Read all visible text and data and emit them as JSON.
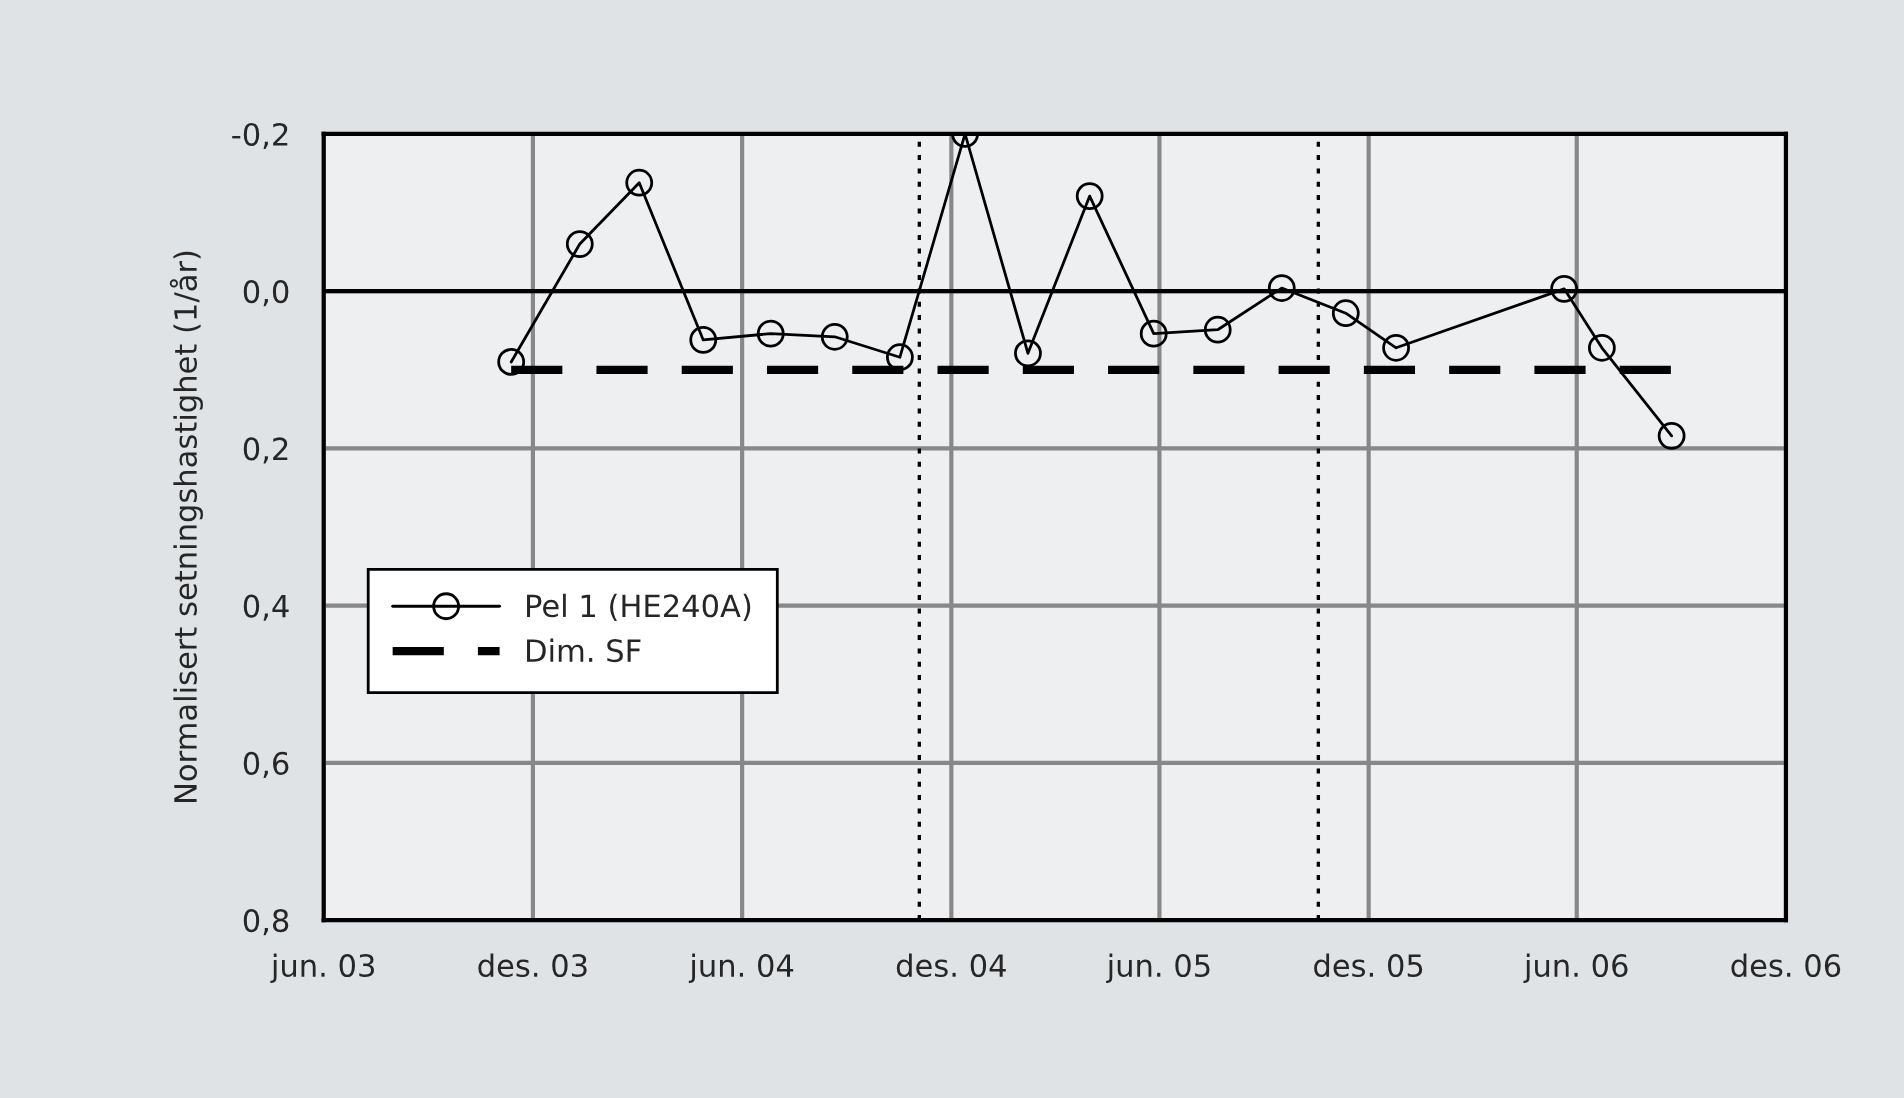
{
  "chart_data": {
    "type": "line",
    "ylabel": "Normalisert setningshastighet (1/år)",
    "xlim": [
      "2003-06-01",
      "2006-12-01"
    ],
    "xticks": [
      {
        "value": "2003-06-01",
        "label": "jun. 03"
      },
      {
        "value": "2003-12-01",
        "label": "des. 03"
      },
      {
        "value": "2004-06-01",
        "label": "jun. 04"
      },
      {
        "value": "2004-12-01",
        "label": "des. 04"
      },
      {
        "value": "2005-06-01",
        "label": "jun. 05"
      },
      {
        "value": "2005-12-01",
        "label": "des. 05"
      },
      {
        "value": "2006-06-01",
        "label": "jun. 06"
      },
      {
        "value": "2006-12-01",
        "label": "des. 06"
      }
    ],
    "ylim": [
      0.8,
      -0.2
    ],
    "yticks": [
      {
        "value": -0.2,
        "label": "-0,2"
      },
      {
        "value": 0.0,
        "label": "0,0"
      },
      {
        "value": 0.2,
        "label": "0,2"
      },
      {
        "value": 0.4,
        "label": "0,4"
      },
      {
        "value": 0.6,
        "label": "0,6"
      },
      {
        "value": 0.8,
        "label": "0,8"
      }
    ],
    "grid": true,
    "legend": "bottom left",
    "series": [
      {
        "name": "Pel 1 (HE240A)",
        "color": "#000000",
        "marker": "circle",
        "line_style": "solid",
        "x": [
          "2003-11-12",
          "2004-01-11",
          "2004-03-03",
          "2004-04-28",
          "2004-06-26",
          "2004-08-21",
          "2004-10-17",
          "2004-12-13",
          "2005-02-06",
          "2005-04-01",
          "2005-05-27",
          "2005-07-22",
          "2005-09-16",
          "2005-11-11",
          "2005-12-25",
          "2006-05-21",
          "2006-06-23",
          "2006-08-23"
        ],
        "values": [
          0.09,
          -0.06,
          -0.138,
          0.062,
          0.054,
          0.058,
          0.084,
          -0.2,
          0.079,
          -0.121,
          0.054,
          0.049,
          -0.004,
          0.028,
          0.072,
          -0.003,
          0.072,
          0.184
        ]
      },
      {
        "name": "Dim. SF",
        "color": "#000000",
        "marker": "none",
        "line_style": "dashed",
        "x": [
          "2003-11-12",
          "2006-08-23"
        ],
        "values": [
          0.1,
          0.1
        ]
      }
    ],
    "ref_lines": [
      {
        "axis": "y",
        "value": 0.0,
        "label": null,
        "color": "#000000",
        "line_style": "solid"
      },
      {
        "axis": "x",
        "value": "2004-11-03",
        "label": null,
        "color": "#000000",
        "line_style": "dotted"
      },
      {
        "axis": "x",
        "value": "2005-10-18",
        "label": null,
        "color": "#000000",
        "line_style": "dotted"
      }
    ]
  }
}
